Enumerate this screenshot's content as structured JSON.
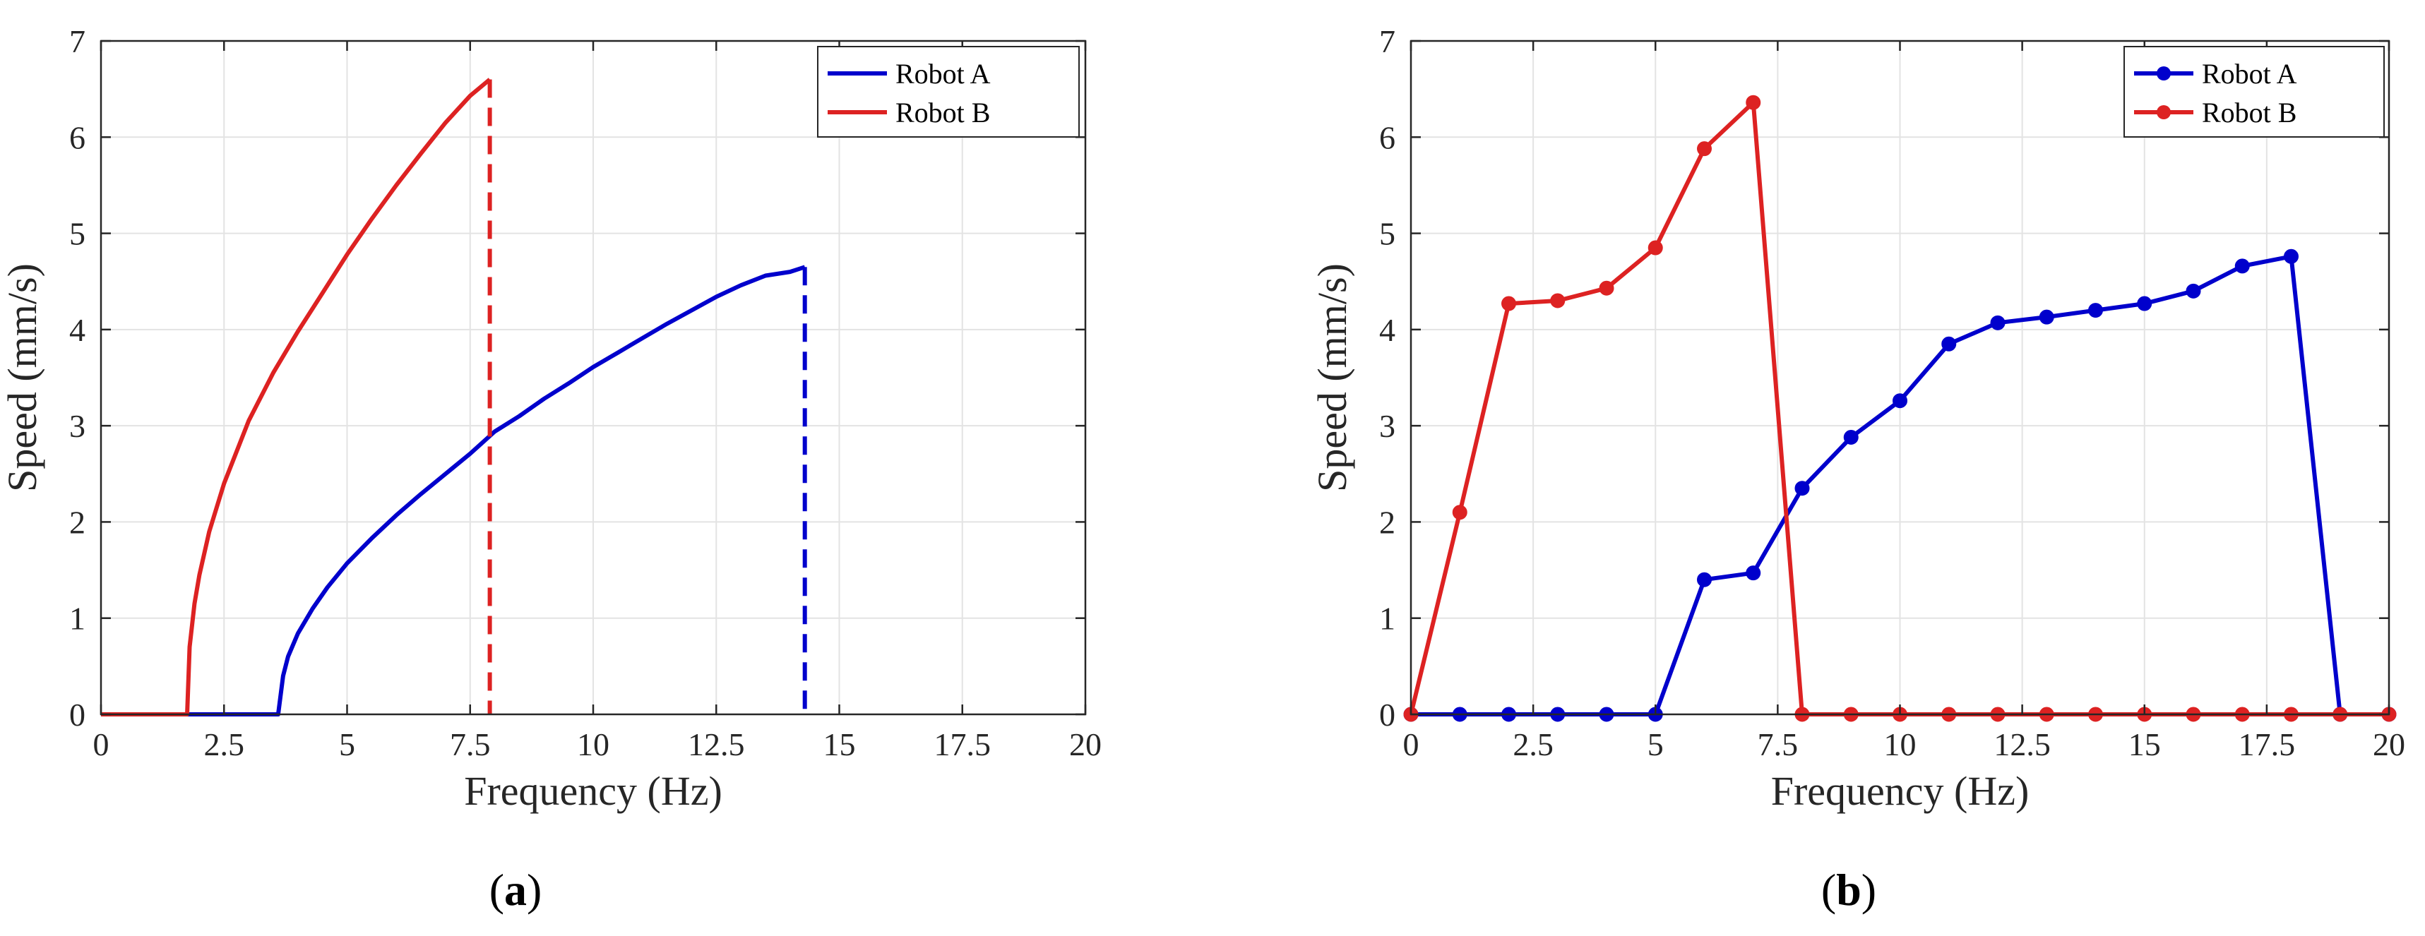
{
  "chart_data": [
    {
      "type": "line",
      "panel_label": "a",
      "xlabel": "Frequency (Hz)",
      "ylabel": "Speed (mm/s)",
      "xlim": [
        0,
        20
      ],
      "ylim": [
        0,
        7
      ],
      "xticks": [
        0,
        2.5,
        5,
        7.5,
        10,
        12.5,
        15,
        17.5,
        20
      ],
      "xtick_labels": [
        "0",
        "2.5",
        "5",
        "7.5",
        "10",
        "12.5",
        "15",
        "17.5",
        "20"
      ],
      "yticks": [
        0,
        1,
        2,
        3,
        4,
        5,
        6,
        7
      ],
      "ytick_labels": [
        "0",
        "1",
        "2",
        "3",
        "4",
        "5",
        "6",
        "7"
      ],
      "grid": true,
      "legend": "top-right",
      "series": [
        {
          "name": "Robot A",
          "color": "#0000cc",
          "style": "solid",
          "x": [
            0,
            3.6,
            3.7,
            3.8,
            4.0,
            4.3,
            4.6,
            5.0,
            5.5,
            6.0,
            6.5,
            7.0,
            7.5,
            8.0,
            8.5,
            9.0,
            9.5,
            10.0,
            10.5,
            11.0,
            11.5,
            12.0,
            12.5,
            13.0,
            13.5,
            14.0,
            14.3
          ],
          "y": [
            0,
            0,
            0.4,
            0.6,
            0.84,
            1.1,
            1.32,
            1.57,
            1.83,
            2.07,
            2.29,
            2.5,
            2.71,
            2.94,
            3.1,
            3.28,
            3.44,
            3.61,
            3.76,
            3.91,
            4.06,
            4.2,
            4.34,
            4.46,
            4.56,
            4.6,
            4.65
          ]
        },
        {
          "name": "Robot B",
          "color": "#dd2222",
          "style": "solid",
          "x": [
            0,
            1.75,
            1.8,
            1.9,
            2.0,
            2.2,
            2.5,
            3.0,
            3.5,
            4.0,
            4.5,
            5.0,
            5.5,
            6.0,
            6.5,
            7.0,
            7.5,
            7.9
          ],
          "y": [
            0,
            0,
            0.7,
            1.15,
            1.45,
            1.9,
            2.4,
            3.05,
            3.55,
            3.98,
            4.38,
            4.78,
            5.15,
            5.5,
            5.83,
            6.15,
            6.43,
            6.6
          ]
        },
        {
          "color": "#dd2222",
          "style": "dashed",
          "x": [
            7.9,
            7.9
          ],
          "y": [
            6.6,
            0
          ]
        },
        {
          "color": "#0000cc",
          "style": "dashed",
          "x": [
            14.3,
            14.3
          ],
          "y": [
            4.65,
            0
          ]
        }
      ]
    },
    {
      "type": "line",
      "panel_label": "b",
      "xlabel": "Frequency (Hz)",
      "ylabel": "Speed (mm/s)",
      "xlim": [
        0,
        20
      ],
      "ylim": [
        0,
        7
      ],
      "xticks": [
        0,
        2.5,
        5,
        7.5,
        10,
        12.5,
        15,
        17.5,
        20
      ],
      "xtick_labels": [
        "0",
        "2.5",
        "5",
        "7.5",
        "10",
        "12.5",
        "15",
        "17.5",
        "20"
      ],
      "yticks": [
        0,
        1,
        2,
        3,
        4,
        5,
        6,
        7
      ],
      "ytick_labels": [
        "0",
        "1",
        "2",
        "3",
        "4",
        "5",
        "6",
        "7"
      ],
      "grid": true,
      "legend": "top-right",
      "markers": true,
      "series": [
        {
          "name": "Robot A",
          "color": "#0000cc",
          "style": "solid",
          "x": [
            0,
            1,
            2,
            3,
            4,
            5,
            6,
            7,
            8,
            9,
            10,
            11,
            12,
            13,
            14,
            15,
            16,
            17,
            18,
            19,
            20
          ],
          "y": [
            0,
            0,
            0,
            0,
            0,
            0,
            1.4,
            1.47,
            2.35,
            2.88,
            3.26,
            3.85,
            4.07,
            4.13,
            4.2,
            4.27,
            4.4,
            4.66,
            4.76,
            0,
            0
          ]
        },
        {
          "name": "Robot B",
          "color": "#dd2222",
          "style": "solid",
          "x": [
            0,
            1,
            2,
            3,
            4,
            5,
            6,
            7,
            8,
            9,
            10,
            11,
            12,
            13,
            14,
            15,
            16,
            17,
            18,
            19,
            20
          ],
          "y": [
            0,
            2.1,
            4.27,
            4.3,
            4.43,
            4.85,
            5.88,
            6.36,
            0,
            0,
            0,
            0,
            0,
            0,
            0,
            0,
            0,
            0,
            0,
            0,
            0
          ]
        }
      ]
    }
  ]
}
